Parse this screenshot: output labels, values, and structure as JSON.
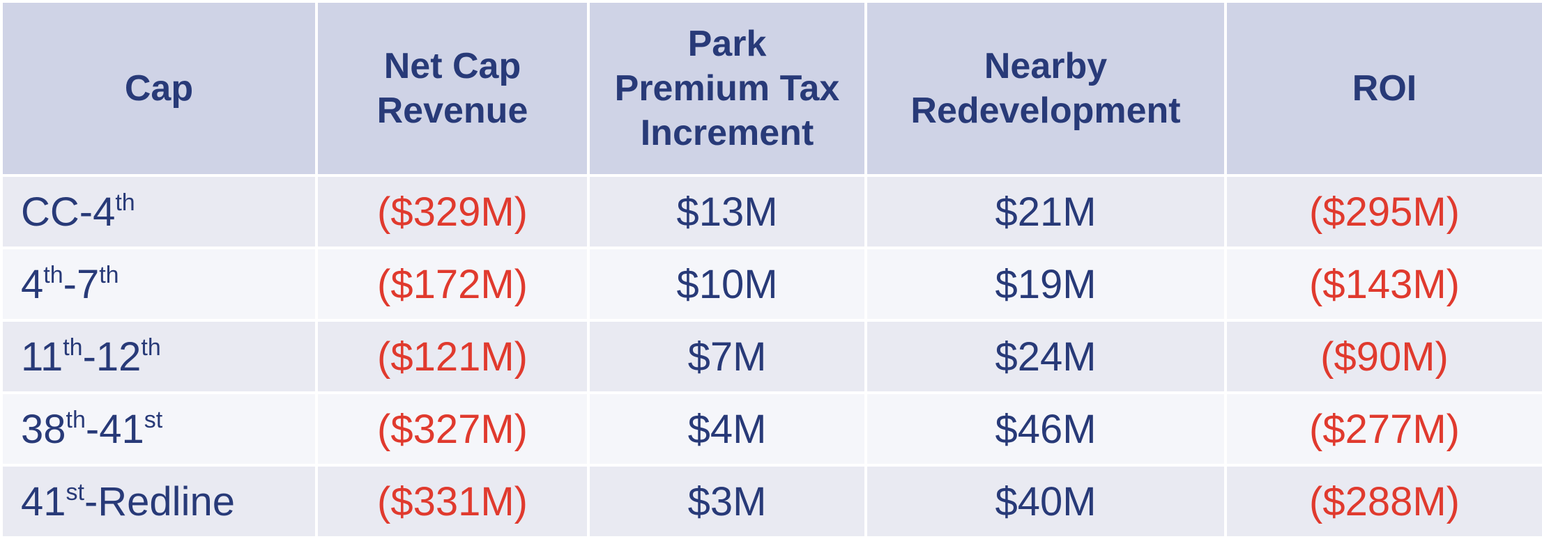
{
  "table": {
    "headers": [
      {
        "key": "cap",
        "lines": [
          "Cap"
        ]
      },
      {
        "key": "net_cap_revenue",
        "lines": [
          "Net Cap",
          "Revenue"
        ]
      },
      {
        "key": "park_premium",
        "lines": [
          "Park",
          "Premium Tax",
          "Increment"
        ]
      },
      {
        "key": "nearby_redevelopment",
        "lines": [
          "Nearby",
          "Redevelopment"
        ]
      },
      {
        "key": "roi",
        "lines": [
          "ROI"
        ]
      }
    ],
    "rows": [
      {
        "cap": [
          {
            "text": "CC-4"
          },
          {
            "text": "th",
            "sup": true
          }
        ],
        "net_cap_revenue": "($329M)",
        "park_premium": "$13M",
        "nearby_redevelopment": "$21M",
        "roi": "($295M)"
      },
      {
        "cap": [
          {
            "text": "4"
          },
          {
            "text": "th",
            "sup": true
          },
          {
            "text": "-7"
          },
          {
            "text": "th",
            "sup": true
          }
        ],
        "net_cap_revenue": "($172M)",
        "park_premium": "$10M",
        "nearby_redevelopment": "$19M",
        "roi": "($143M)"
      },
      {
        "cap": [
          {
            "text": "11"
          },
          {
            "text": "th",
            "sup": true
          },
          {
            "text": "-12"
          },
          {
            "text": "th",
            "sup": true
          }
        ],
        "net_cap_revenue": "($121M)",
        "park_premium": "$7M",
        "nearby_redevelopment": "$24M",
        "roi": "($90M)"
      },
      {
        "cap": [
          {
            "text": "38"
          },
          {
            "text": "th",
            "sup": true
          },
          {
            "text": "-41"
          },
          {
            "text": "st",
            "sup": true
          }
        ],
        "net_cap_revenue": "($327M)",
        "park_premium": "$4M",
        "nearby_redevelopment": "$46M",
        "roi": "($277M)"
      },
      {
        "cap": [
          {
            "text": "41"
          },
          {
            "text": "st",
            "sup": true
          },
          {
            "text": "-Redline"
          }
        ],
        "net_cap_revenue": "($331M)",
        "park_premium": "$3M",
        "nearby_redevelopment": "$40M",
        "roi": "($288M)"
      }
    ]
  },
  "colors": {
    "header_bg": "#cfd3e6",
    "row_odd_bg": "#e9eaf2",
    "row_even_bg": "#f5f6fa",
    "text_navy": "#283a78",
    "negative_red": "#e03a2e"
  }
}
